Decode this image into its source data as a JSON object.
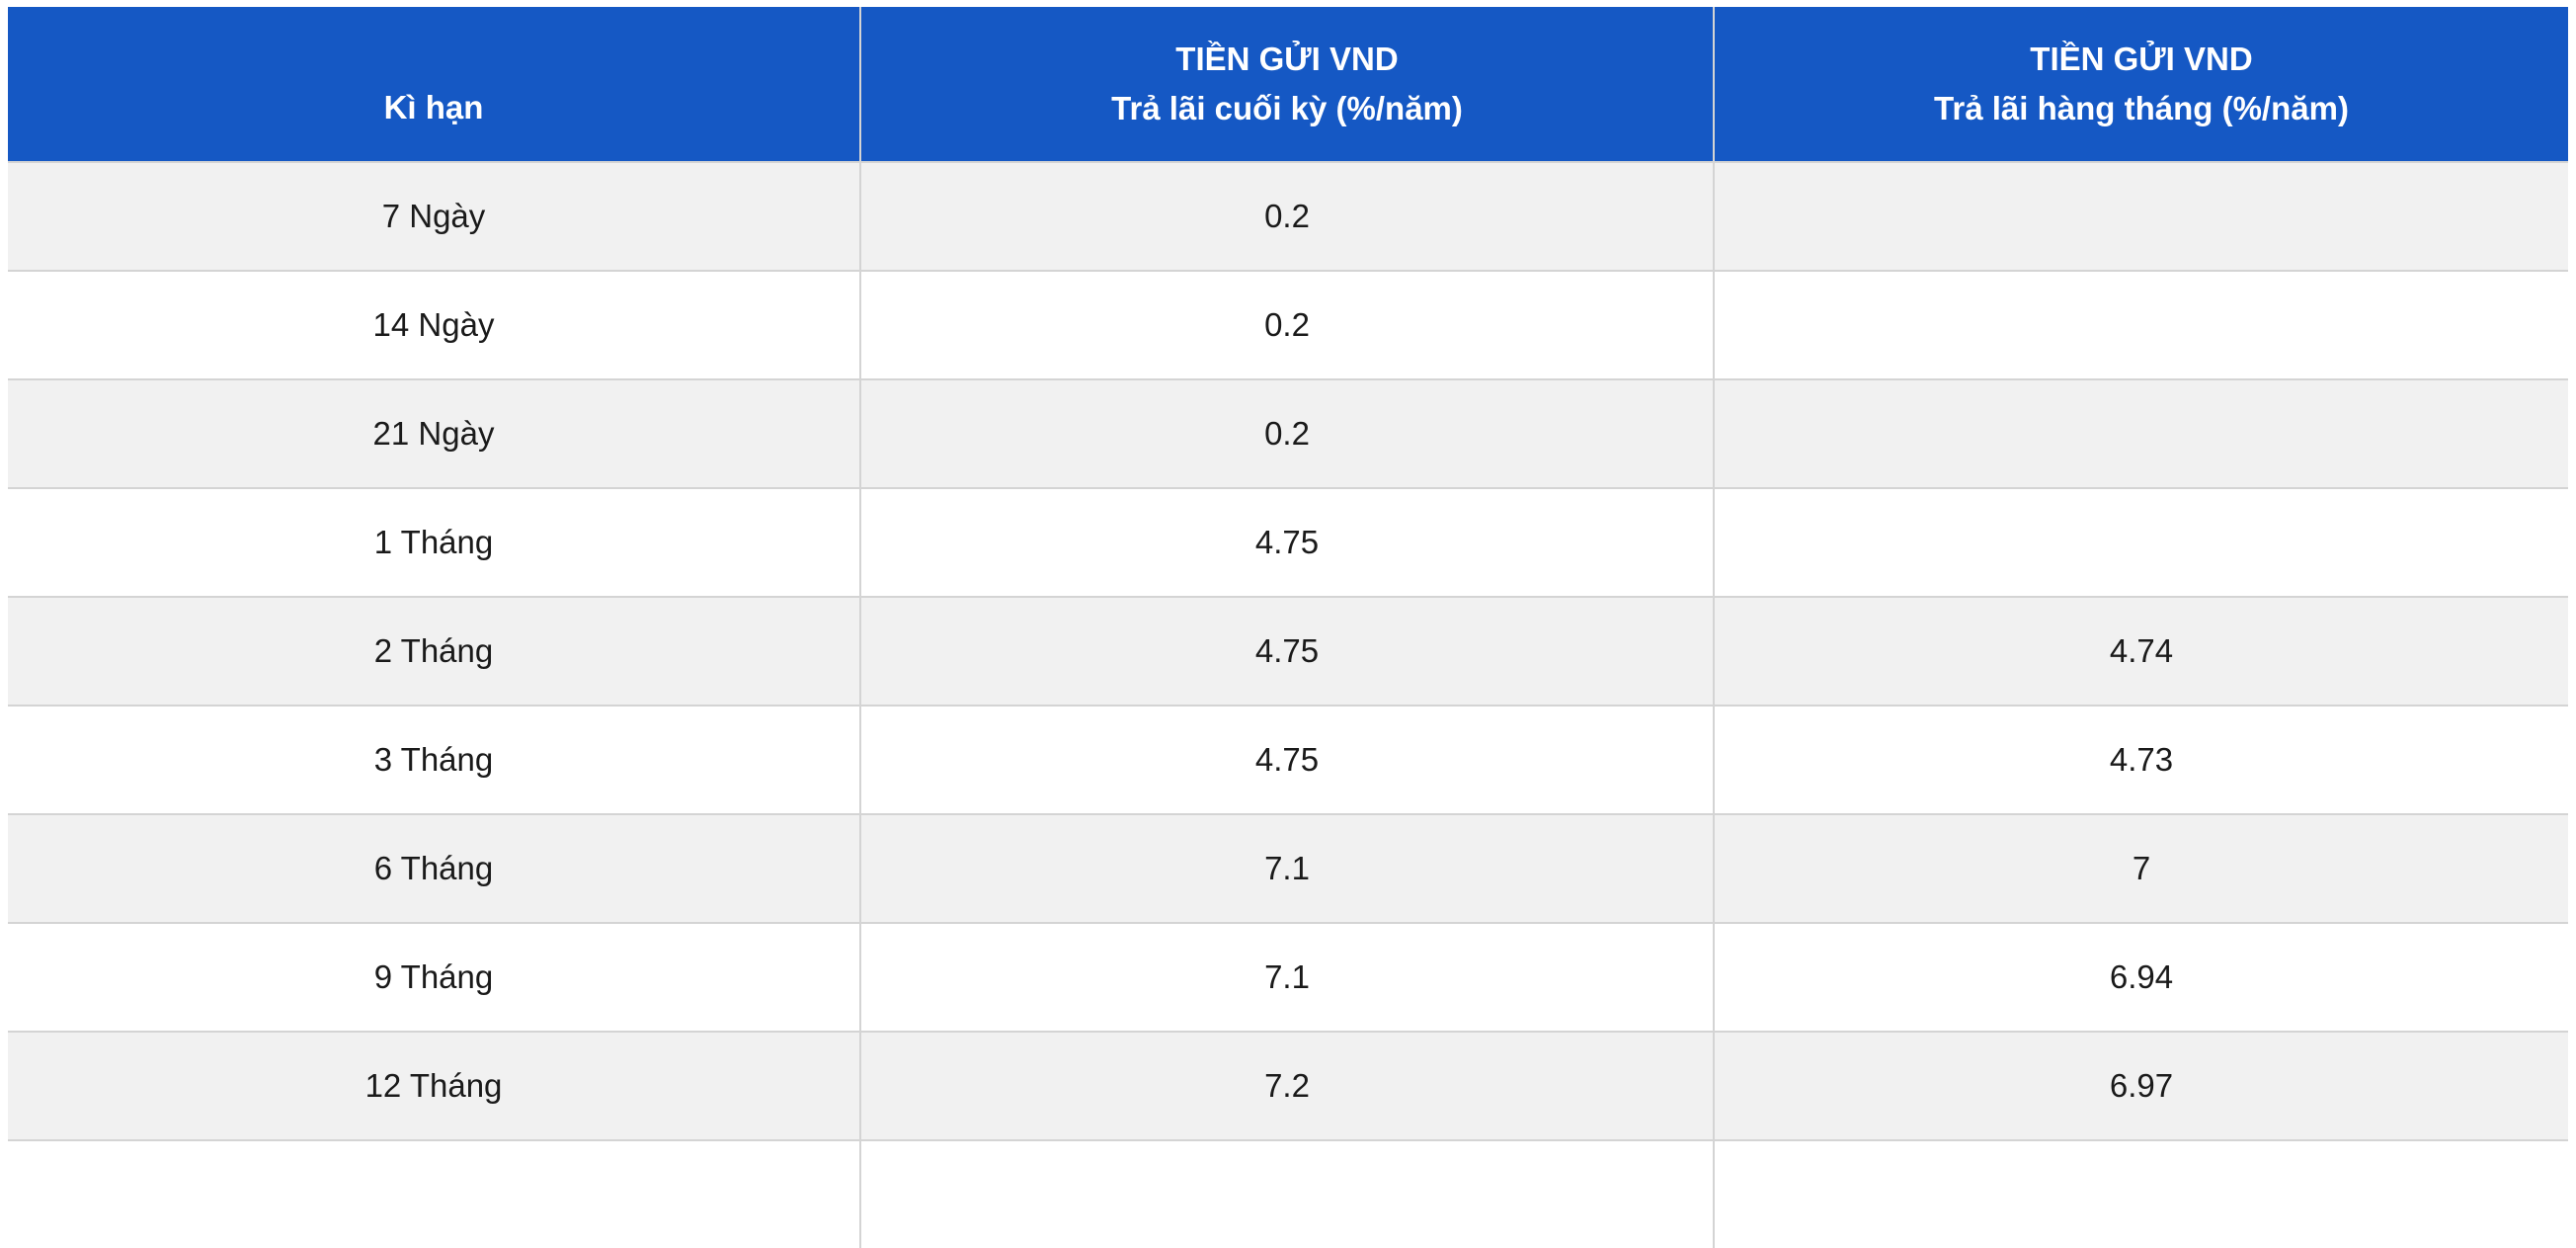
{
  "table": {
    "headers": [
      {
        "lines": [
          "Kì hạn"
        ]
      },
      {
        "lines": [
          "TIỀN GỬI VND",
          "Trả lãi cuối kỳ (%/năm)"
        ]
      },
      {
        "lines": [
          "TIỀN GỬI VND",
          "Trả lãi hàng tháng (%/năm)"
        ]
      }
    ],
    "rows": [
      [
        "7 Ngày",
        "0.2",
        ""
      ],
      [
        "14 Ngày",
        "0.2",
        ""
      ],
      [
        "21 Ngày",
        "0.2",
        ""
      ],
      [
        "1 Tháng",
        "4.75",
        ""
      ],
      [
        "2 Tháng",
        "4.75",
        "4.74"
      ],
      [
        "3 Tháng",
        "4.75",
        "4.73"
      ],
      [
        "6 Tháng",
        "7.1",
        "7"
      ],
      [
        "9 Tháng",
        "7.1",
        "6.94"
      ],
      [
        "12 Tháng",
        "7.2",
        "6.97"
      ],
      [
        "",
        "",
        ""
      ]
    ]
  },
  "colors": {
    "header_background": "#1558c4",
    "header_text": "#ffffff",
    "row_alt_background": "#f1f1f1",
    "row_background": "#ffffff",
    "grid_line": "#d4d4d4"
  }
}
